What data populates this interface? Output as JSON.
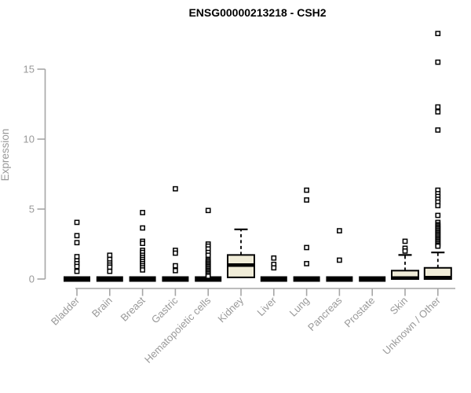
{
  "chart_data": {
    "type": "boxplot",
    "title": "ENSG00000213218 - CSH2",
    "xlabel": "",
    "ylabel": "Expression",
    "ylim": [
      0,
      17.8
    ],
    "yticks": [
      0,
      5,
      10,
      15
    ],
    "grid": false,
    "legend": "none",
    "categories": [
      "Bladder",
      "Brain",
      "Breast",
      "Gastric",
      "Hematopoietic cells",
      "Kidney",
      "Liver",
      "Lung",
      "Pancreas",
      "Prostate",
      "Skin",
      "Unknown / Other"
    ],
    "series": [
      {
        "category": "Bladder",
        "q1": 0,
        "median": 0,
        "q3": 0,
        "whisker_low": 0,
        "whisker_high": 0,
        "outliers": [
          4.05,
          3.1,
          2.6,
          1.6,
          1.3,
          1.1,
          0.9,
          0.55
        ]
      },
      {
        "category": "Brain",
        "q1": 0,
        "median": 0,
        "q3": 0,
        "whisker_low": 0,
        "whisker_high": 0,
        "outliers": [
          1.7,
          1.4,
          1.15,
          1.0,
          0.85,
          0.55
        ]
      },
      {
        "category": "Breast",
        "q1": 0,
        "median": 0,
        "q3": 0,
        "whisker_low": 0,
        "whisker_high": 0,
        "outliers": [
          4.75,
          3.65,
          2.7,
          2.55,
          2.05,
          1.9,
          1.7,
          1.55,
          1.4,
          1.25,
          1.1,
          0.95,
          0.8,
          0.65
        ]
      },
      {
        "category": "Gastric",
        "q1": 0,
        "median": 0,
        "q3": 0,
        "whisker_low": 0,
        "whisker_high": 0,
        "outliers": [
          6.45,
          2.05,
          1.85,
          0.95,
          0.6
        ]
      },
      {
        "category": "Hematopoietic cells",
        "q1": 0,
        "median": 0,
        "q3": 0,
        "whisker_low": 0,
        "whisker_high": 0,
        "outliers": [
          4.9,
          2.5,
          2.35,
          2.15,
          1.9,
          1.7,
          1.4,
          1.3,
          1.2,
          1.1,
          1.0,
          0.9,
          0.8,
          0.7,
          0.6,
          0.5,
          0.4,
          0.3,
          0.2
        ]
      },
      {
        "category": "Kidney",
        "q1": 0.12,
        "median": 1.0,
        "q3": 1.72,
        "whisker_low": 0.12,
        "whisker_high": 3.55,
        "outliers": []
      },
      {
        "category": "Liver",
        "q1": 0,
        "median": 0,
        "q3": 0,
        "whisker_low": 0,
        "whisker_high": 0,
        "outliers": [
          1.5,
          1.05,
          0.8
        ]
      },
      {
        "category": "Lung",
        "q1": 0,
        "median": 0,
        "q3": 0,
        "whisker_low": 0,
        "whisker_high": 0,
        "outliers": [
          6.35,
          5.65,
          2.25,
          1.1
        ]
      },
      {
        "category": "Pancreas",
        "q1": 0,
        "median": 0,
        "q3": 0,
        "whisker_low": 0,
        "whisker_high": 0,
        "outliers": [
          3.45,
          1.35
        ]
      },
      {
        "category": "Prostate",
        "q1": 0,
        "median": 0,
        "q3": 0,
        "whisker_low": 0,
        "whisker_high": 0,
        "outliers": []
      },
      {
        "category": "Skin",
        "q1": 0,
        "median": 0.07,
        "q3": 0.6,
        "whisker_low": 0,
        "whisker_high": 1.72,
        "outliers": [
          2.7,
          2.2,
          2.0
        ]
      },
      {
        "category": "Unknown / Other",
        "q1": 0,
        "median": 0.1,
        "q3": 0.8,
        "whisker_low": 0,
        "whisker_high": 1.9,
        "outliers": [
          17.55,
          15.5,
          12.3,
          11.95,
          10.65,
          6.35,
          6.1,
          5.9,
          5.7,
          5.5,
          5.25,
          4.55,
          4.05,
          3.9,
          3.8,
          3.7,
          3.6,
          3.5,
          3.4,
          3.3,
          3.2,
          3.1,
          3.0,
          2.9,
          2.8,
          2.7,
          2.6,
          2.5,
          2.4,
          2.35
        ]
      }
    ],
    "colors": {
      "box_fill": "#f0ecd8",
      "box_stroke": "#000000",
      "collapsed_bar": "#000000",
      "median": "#000000",
      "outlier_stroke": "#000000",
      "outlier_fill": "#ffffff",
      "axis_line": "#a6a6a6",
      "tick_text": "#999999",
      "title_text": "#000000"
    }
  }
}
